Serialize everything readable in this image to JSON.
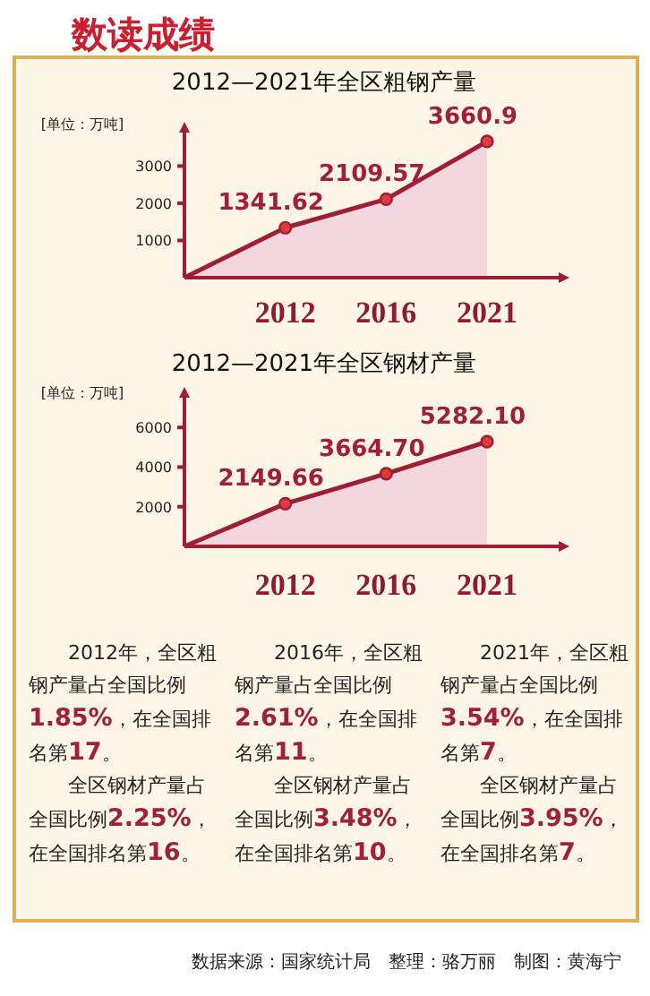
{
  "chart_data": [
    {
      "type": "area",
      "title": "2012—2021年全区粗钢产量",
      "ylabel": "[单位：万吨]",
      "categories": [
        null,
        "2012",
        "2016",
        "2021"
      ],
      "values": [
        0,
        1341.62,
        2109.57,
        3660.9
      ],
      "value_labels": [
        null,
        "1341.62",
        "2109.57",
        "3660.9"
      ],
      "color": "#9e1f35",
      "ylim": [
        0,
        3900
      ],
      "yticks": [
        1000,
        2000,
        3000
      ],
      "marker": "circle",
      "annotations": [
        "数读成绩"
      ]
    },
    {
      "type": "area",
      "title": "2012—2021年全区钢材产量",
      "ylabel": "[单位：万吨]",
      "categories": [
        null,
        "2012",
        "2016",
        "2021"
      ],
      "values": [
        0,
        2149.66,
        3664.7,
        5282.1
      ],
      "value_labels": [
        null,
        "2149.66",
        "3664.70",
        "5282.10"
      ],
      "color": "#9e1f35",
      "ylim": [
        0,
        7500
      ],
      "yticks": [
        2000,
        4000,
        6000
      ],
      "marker": "circle"
    },
    {
      "type": "other",
      "annotations": [
        "2012年，全区粗钢产量占全国比例**1.85%**，在全国排名第**17**。",
        "全区钢材产量占全国比例**2.25%**，在全国排名第**16**。",
        "2016年，全区粗钢产量占全国比例**2.61%**，在全国排名第**11**。",
        "全区钢材产量占全国比例**3.48%**，在全国排名第**10**。",
        "2021年，全区粗钢产量占全国比例**3.54%**，在全国排名第**7**。",
        "全区钢材产量占全国比例**3.95%**，在全国排名第**7**。",
        "数据来源：国家统计局　整理：骆万丽　制图：黄海宁"
      ]
    }
  ]
}
